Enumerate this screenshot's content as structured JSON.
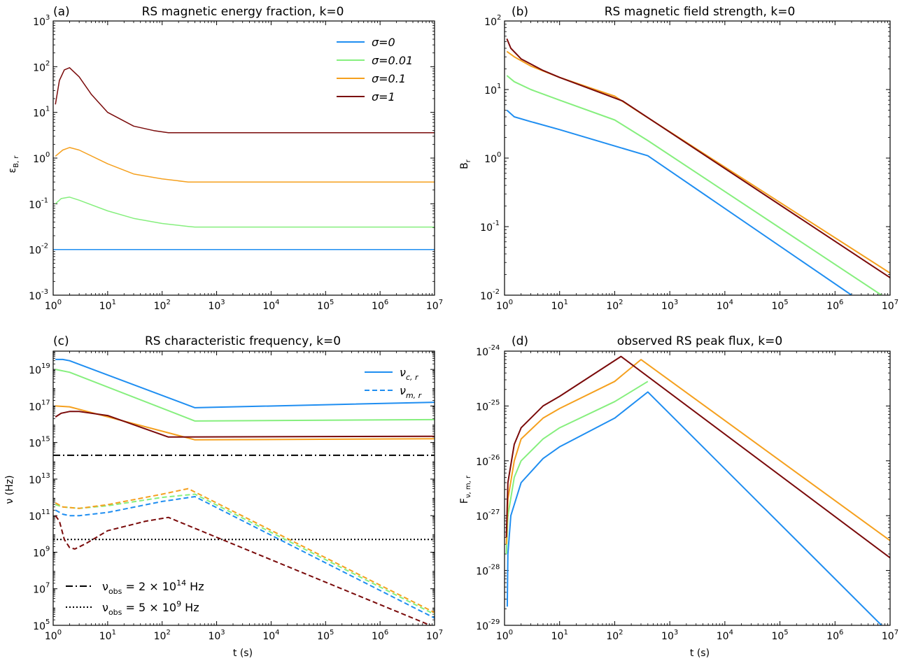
{
  "figure": {
    "colors": {
      "s0": "#1f8ef1",
      "s001": "#86ef7e",
      "s01": "#f5a01e",
      "s1": "#7a0a0a",
      "axis": "#000000"
    }
  },
  "chart_data": [
    {
      "id": "a",
      "type": "line",
      "panel_label": "(a)",
      "title": "RS magnetic energy fraction, k=0",
      "ylabel": "ε_B, r",
      "xlabel": "",
      "xscale": "log",
      "yscale": "log",
      "xlim": [
        1,
        10000000
      ],
      "ylim": [
        0.001,
        1000
      ],
      "xticks": [
        {
          "e": 0
        },
        {
          "e": 1
        },
        {
          "e": 2
        },
        {
          "e": 3
        },
        {
          "e": 4
        },
        {
          "e": 5
        },
        {
          "e": 6
        },
        {
          "e": 7
        }
      ],
      "yticks": [
        {
          "e": -3
        },
        {
          "e": -2
        },
        {
          "e": -1
        },
        {
          "e": 0
        },
        {
          "e": 1
        },
        {
          "e": 2
        },
        {
          "e": 3
        }
      ],
      "legend": {
        "position": "upper-right",
        "entries": [
          {
            "label": "σ=0",
            "color": "#1f8ef1",
            "dash": "solid"
          },
          {
            "label": "σ=0.01",
            "color": "#86ef7e",
            "dash": "solid"
          },
          {
            "label": "σ=0.1",
            "color": "#f5a01e",
            "dash": "solid"
          },
          {
            "label": "σ=1",
            "color": "#7a0a0a",
            "dash": "solid"
          }
        ]
      },
      "hlines": [],
      "series": [
        {
          "color": "#1f8ef1",
          "dash": "solid",
          "width": 1.5,
          "points": [
            [
              1,
              0.01
            ],
            [
              10000000,
              0.01
            ]
          ]
        },
        {
          "color": "#86ef7e",
          "dash": "solid",
          "width": 1.5,
          "points": [
            [
              1.1,
              0.1
            ],
            [
              1.4,
              0.13
            ],
            [
              2,
              0.14
            ],
            [
              3,
              0.12
            ],
            [
              10,
              0.07
            ],
            [
              30,
              0.048
            ],
            [
              100,
              0.037
            ],
            [
              300,
              0.032
            ],
            [
              400,
              0.031
            ],
            [
              10000000,
              0.031
            ]
          ]
        },
        {
          "color": "#f5a01e",
          "dash": "solid",
          "width": 1.5,
          "points": [
            [
              1.1,
              1.1
            ],
            [
              1.5,
              1.5
            ],
            [
              2,
              1.7
            ],
            [
              3,
              1.5
            ],
            [
              10,
              0.75
            ],
            [
              30,
              0.45
            ],
            [
              100,
              0.35
            ],
            [
              300,
              0.3
            ],
            [
              10000000,
              0.3
            ]
          ]
        },
        {
          "color": "#7a0a0a",
          "dash": "solid",
          "width": 1.5,
          "points": [
            [
              1.1,
              15
            ],
            [
              1.3,
              50
            ],
            [
              1.6,
              85
            ],
            [
              2,
              95
            ],
            [
              3,
              60
            ],
            [
              5,
              25
            ],
            [
              10,
              10
            ],
            [
              30,
              5
            ],
            [
              70,
              4
            ],
            [
              130,
              3.6
            ],
            [
              10000000,
              3.6
            ]
          ]
        }
      ]
    },
    {
      "id": "b",
      "type": "line",
      "panel_label": "(b)",
      "title": "RS magnetic field strength, k=0",
      "ylabel": "B_r",
      "xlabel": "",
      "xscale": "log",
      "yscale": "log",
      "xlim": [
        1,
        10000000
      ],
      "ylim": [
        0.01,
        100
      ],
      "xticks": [
        {
          "e": 0
        },
        {
          "e": 1
        },
        {
          "e": 2
        },
        {
          "e": 3
        },
        {
          "e": 4
        },
        {
          "e": 5
        },
        {
          "e": 6
        },
        {
          "e": 7
        }
      ],
      "yticks": [
        {
          "e": -2
        },
        {
          "e": -1
        },
        {
          "e": 0
        },
        {
          "e": 1
        },
        {
          "e": 2
        }
      ],
      "legend": null,
      "hlines": [],
      "series": [
        {
          "color": "#1f8ef1",
          "dash": "solid",
          "width": 2,
          "points": [
            [
              1.1,
              5
            ],
            [
              1.5,
              4
            ],
            [
              3,
              3.4
            ],
            [
              10,
              2.6
            ],
            [
              100,
              1.5
            ],
            [
              400,
              1.08
            ],
            [
              2000000,
              0.01
            ]
          ]
        },
        {
          "color": "#86ef7e",
          "dash": "solid",
          "width": 2,
          "points": [
            [
              1.1,
              16
            ],
            [
              1.5,
              13
            ],
            [
              3,
              10
            ],
            [
              10,
              7
            ],
            [
              100,
              3.6
            ],
            [
              400,
              1.8
            ],
            [
              7000000,
              0.01
            ]
          ]
        },
        {
          "color": "#f5a01e",
          "dash": "solid",
          "width": 2,
          "points": [
            [
              1.1,
              36
            ],
            [
              1.5,
              30
            ],
            [
              3,
              22
            ],
            [
              10,
              15
            ],
            [
              100,
              8
            ],
            [
              300,
              4.5
            ],
            [
              10000000,
              0.021
            ]
          ]
        },
        {
          "color": "#7a0a0a",
          "dash": "solid",
          "width": 2,
          "points": [
            [
              1.1,
              55
            ],
            [
              1.3,
              40
            ],
            [
              2,
              28
            ],
            [
              5,
              19
            ],
            [
              10,
              15
            ],
            [
              140,
              6.8
            ],
            [
              10000000,
              0.018
            ]
          ]
        }
      ]
    },
    {
      "id": "c",
      "type": "line",
      "panel_label": "(c)",
      "title": "RS characteristic frequency, k=0",
      "ylabel": "ν (Hz)",
      "xlabel": "t (s)",
      "xscale": "log",
      "yscale": "log",
      "xlim": [
        1,
        10000000
      ],
      "ylim": [
        100000,
        1e+20
      ],
      "xticks": [
        {
          "e": 0
        },
        {
          "e": 1
        },
        {
          "e": 2
        },
        {
          "e": 3
        },
        {
          "e": 4
        },
        {
          "e": 5
        },
        {
          "e": 6
        },
        {
          "e": 7
        }
      ],
      "yticks": [
        {
          "e": 5
        },
        {
          "e": 7
        },
        {
          "e": 9
        },
        {
          "e": 11
        },
        {
          "e": 13
        },
        {
          "e": 15
        },
        {
          "e": 17
        },
        {
          "e": 19
        }
      ],
      "legend": {
        "position": "upper-right",
        "entries": [
          {
            "label": "ν",
            "sub": "c, r",
            "color": "#1f8ef1",
            "dash": "solid"
          },
          {
            "label": "ν",
            "sub": "m, r",
            "color": "#1f8ef1",
            "dash": "dashed"
          }
        ]
      },
      "hline_legend": {
        "position": "lower-left",
        "entries": [
          {
            "label": "ν",
            "sub": "obs",
            "value": "= 2 × 10",
            "exp": "14",
            "unit": " Hz",
            "dash": "dashdot"
          },
          {
            "label": "ν",
            "sub": "obs",
            "value": "= 5 × 10",
            "exp": "9",
            "unit": " Hz",
            "dash": "dotted"
          }
        ]
      },
      "hlines": [
        {
          "y": 200000000000000,
          "dash": "dashdot",
          "color": "#000000"
        },
        {
          "y": 5000000000,
          "dash": "dotted",
          "color": "#000000"
        }
      ],
      "series": [
        {
          "color": "#1f8ef1",
          "dash": "solid",
          "width": 2,
          "points": [
            [
              1.1,
              3.5e+19
            ],
            [
              1.5,
              3.5e+19
            ],
            [
              2,
              3e+19
            ],
            [
              400,
              8e+16
            ],
            [
              10000000,
              1.6e+17
            ]
          ]
        },
        {
          "color": "#86ef7e",
          "dash": "solid",
          "width": 2,
          "points": [
            [
              1.1,
              1e+19
            ],
            [
              2,
              7e+18
            ],
            [
              400,
              1.5e+16
            ],
            [
              10000000,
              1.8e+16
            ]
          ]
        },
        {
          "color": "#f5a01e",
          "dash": "solid",
          "width": 2,
          "points": [
            [
              1.1,
              1e+17
            ],
            [
              2,
              9e+16
            ],
            [
              400,
              1400000000000000.0
            ],
            [
              10000000,
              1600000000000000.0
            ]
          ]
        },
        {
          "color": "#7a0a0a",
          "dash": "solid",
          "width": 2,
          "points": [
            [
              1.1,
              2.5e+16
            ],
            [
              1.4,
              4e+16
            ],
            [
              2,
              5e+16
            ],
            [
              3,
              5e+16
            ],
            [
              10,
              3e+16
            ],
            [
              130,
              2000000000000000.0
            ],
            [
              10000000,
              2200000000000000.0
            ]
          ]
        },
        {
          "color": "#1f8ef1",
          "dash": "dashed",
          "width": 2,
          "points": [
            [
              1.1,
              200000000000.0
            ],
            [
              1.5,
              120000000000.0
            ],
            [
              2,
              100000000000.0
            ],
            [
              3,
              100000000000.0
            ],
            [
              10,
              150000000000.0
            ],
            [
              100,
              600000000000.0
            ],
            [
              400,
              1100000000000.0
            ],
            [
              10000000,
              250000.0
            ]
          ]
        },
        {
          "color": "#86ef7e",
          "dash": "dashed",
          "width": 2,
          "points": [
            [
              1.1,
              400000000000.0
            ],
            [
              1.5,
              300000000000.0
            ],
            [
              3,
              250000000000.0
            ],
            [
              10,
              350000000000.0
            ],
            [
              100,
              1000000000000.0
            ],
            [
              400,
              1500000000000.0
            ],
            [
              10000000,
              400000.0
            ]
          ]
        },
        {
          "color": "#f5a01e",
          "dash": "dashed",
          "width": 2,
          "points": [
            [
              1.1,
              500000000000.0
            ],
            [
              1.5,
              300000000000.0
            ],
            [
              3,
              250000000000.0
            ],
            [
              10,
              400000000000.0
            ],
            [
              100,
              1500000000000.0
            ],
            [
              300,
              3000000000000.0
            ],
            [
              10000000,
              500000.0
            ]
          ]
        },
        {
          "color": "#7a0a0a",
          "dash": "dashed",
          "width": 2,
          "points": [
            [
              1.1,
              100000000000.0
            ],
            [
              1.3,
              50000000000.0
            ],
            [
              1.6,
              5000000000.0
            ],
            [
              2,
              1800000000.0
            ],
            [
              2.5,
              1500000000.0
            ],
            [
              4,
              3000000000.0
            ],
            [
              10,
              15000000000.0
            ],
            [
              50,
              50000000000.0
            ],
            [
              130,
              80000000000.0
            ],
            [
              10000000,
              80000.0
            ]
          ]
        }
      ]
    },
    {
      "id": "d",
      "type": "line",
      "panel_label": "(d)",
      "title": "observed RS peak flux, k=0",
      "ylabel": "F_ν, m, r",
      "xlabel": "t (s)",
      "xscale": "log",
      "yscale": "log",
      "xlim": [
        1,
        10000000
      ],
      "ylim": [
        1e-29,
        1e-24
      ],
      "xticks": [
        {
          "e": 0
        },
        {
          "e": 1
        },
        {
          "e": 2
        },
        {
          "e": 3
        },
        {
          "e": 4
        },
        {
          "e": 5
        },
        {
          "e": 6
        },
        {
          "e": 7
        }
      ],
      "yticks": [
        {
          "e": -29
        },
        {
          "e": -28
        },
        {
          "e": -27
        },
        {
          "e": -26
        },
        {
          "e": -25
        },
        {
          "e": -24
        }
      ],
      "legend": null,
      "hlines": [],
      "series": [
        {
          "color": "#1f8ef1",
          "dash": "solid",
          "width": 2,
          "points": [
            [
              1.12,
              2.2e-29
            ],
            [
              1.15,
              2e-28
            ],
            [
              1.3,
              1e-27
            ],
            [
              2,
              4e-27
            ],
            [
              5,
              1.1e-26
            ],
            [
              10,
              1.8e-26
            ],
            [
              100,
              6e-26
            ],
            [
              400,
              1.8e-25
            ],
            [
              7000000,
              1e-29
            ]
          ]
        },
        {
          "color": "#86ef7e",
          "dash": "solid",
          "width": 2,
          "points": [
            [
              1.08,
              2e-28
            ],
            [
              1.15,
              1e-27
            ],
            [
              1.5,
              5e-27
            ],
            [
              2,
              1e-26
            ],
            [
              5,
              2.5e-26
            ],
            [
              10,
              4e-26
            ],
            [
              100,
              1.2e-25
            ],
            [
              400,
              2.8e-25
            ]
          ]
        },
        {
          "color": "#f5a01e",
          "dash": "solid",
          "width": 2,
          "points": [
            [
              1.08,
              3e-28
            ],
            [
              1.15,
              2e-27
            ],
            [
              1.5,
              1e-26
            ],
            [
              2,
              2.5e-26
            ],
            [
              5,
              6e-26
            ],
            [
              10,
              9e-26
            ],
            [
              100,
              2.8e-25
            ],
            [
              300,
              7e-25
            ],
            [
              10000000,
              3.5e-28
            ]
          ]
        },
        {
          "color": "#7a0a0a",
          "dash": "solid",
          "width": 2,
          "points": [
            [
              1.08,
              4e-28
            ],
            [
              1.15,
              4e-27
            ],
            [
              1.5,
              2e-26
            ],
            [
              2,
              4e-26
            ],
            [
              5,
              1e-25
            ],
            [
              10,
              1.5e-25
            ],
            [
              130,
              8e-25
            ],
            [
              10000000,
              1.7e-28
            ]
          ]
        }
      ]
    }
  ]
}
